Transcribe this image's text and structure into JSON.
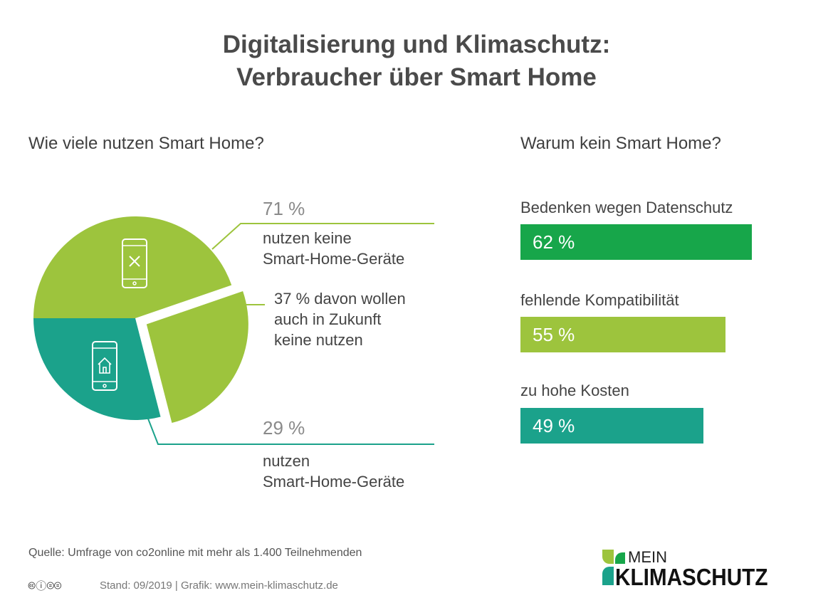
{
  "title": [
    "Digitalisierung und Klimaschutz:",
    "Verbraucher über Smart Home"
  ],
  "left_heading": "Wie viele nutzen Smart Home?",
  "right_heading": "Warum kein Smart Home?",
  "colors": {
    "light_green": "#9dc43d",
    "dark_green": "#17a64a",
    "teal": "#1ba28b"
  },
  "chart_data": [
    {
      "type": "pie",
      "slices": [
        {
          "label": "nutzen keine Smart-Home-Geräte",
          "value": 71,
          "value_label": "71 %",
          "icon": "phone-x-icon"
        },
        {
          "label": "nutzen Smart-Home-Geräte",
          "value": 29,
          "value_label": "29 %",
          "icon": "phone-home-icon"
        }
      ],
      "sub_slice": {
        "label_lines": [
          "37 % davon wollen",
          "auch in Zukunft",
          "keine nutzen"
        ],
        "share_of_parent": 37
      },
      "label_lines_none": [
        "nutzen keine",
        "Smart-Home-Geräte"
      ],
      "label_lines_use": [
        "nutzen",
        "Smart-Home-Geräte"
      ]
    },
    {
      "type": "bar",
      "orientation": "horizontal",
      "categories": [
        "Bedenken wegen Datenschutz",
        "fehlende Kompatibilität",
        "zu hohe Kosten"
      ],
      "values": [
        62,
        55,
        49
      ],
      "value_labels": [
        "62 %",
        "55 %",
        "49 %"
      ],
      "colors": [
        "#17a64a",
        "#9dc43d",
        "#1ba28b"
      ]
    }
  ],
  "footer": {
    "source": "Quelle: Umfrage von co2online mit mehr als 1.400 Teilnehmenden",
    "stand": "Stand: 09/2019  |  Grafik: www.mein-klimaschutz.de",
    "license": "CC BY-NC-ND",
    "logo": [
      "MEIN",
      "KLIMASCHUTZ"
    ]
  }
}
